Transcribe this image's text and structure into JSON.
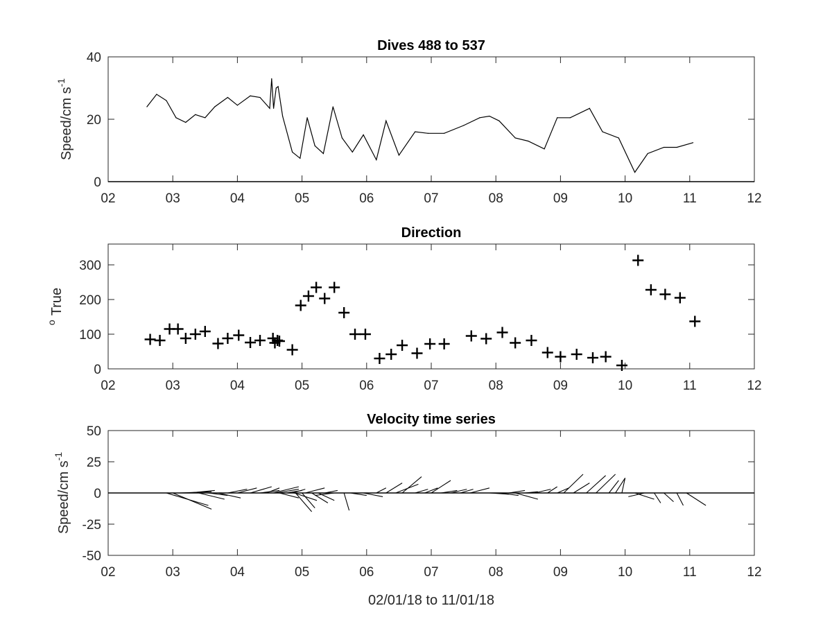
{
  "chart_data": [
    {
      "type": "line",
      "title": "Dives 488 to 537",
      "ylabel": "Speed/cm s",
      "ylabel_superscript": "-1",
      "xlabel": "",
      "xlim": [
        2,
        12
      ],
      "ylim": [
        0,
        40
      ],
      "x_ticks": [
        2,
        3,
        4,
        5,
        6,
        7,
        8,
        9,
        10,
        11,
        12
      ],
      "x_tick_labels": [
        "02",
        "03",
        "04",
        "05",
        "06",
        "07",
        "08",
        "09",
        "10",
        "11",
        "12"
      ],
      "y_ticks": [
        0,
        20,
        40
      ],
      "y_tick_labels": [
        "0",
        "20",
        "40"
      ],
      "grid": false,
      "series": [
        {
          "x": [
            2.6,
            2.75,
            2.9,
            3.05,
            3.2,
            3.35,
            3.5,
            3.65,
            3.85,
            4.0,
            4.2,
            4.35,
            4.5,
            4.53,
            4.56,
            4.6,
            4.63,
            4.7,
            4.85,
            4.97,
            5.08,
            5.2,
            5.33,
            5.48,
            5.62,
            5.78,
            5.95,
            6.15,
            6.3,
            6.5,
            6.75,
            6.95,
            7.2,
            7.5,
            7.75,
            7.9,
            8.05,
            8.3,
            8.5,
            8.75,
            8.95,
            9.15,
            9.45,
            9.65,
            9.9,
            10.15,
            10.35,
            10.6,
            10.8,
            11.05
          ],
          "y": [
            24,
            28,
            26,
            20.5,
            19,
            21.5,
            20.5,
            24,
            27,
            24.5,
            27.5,
            27,
            23.5,
            33,
            23.5,
            30,
            30.5,
            21,
            9.5,
            7.5,
            20.5,
            11.5,
            9,
            24,
            14,
            9.5,
            15,
            7,
            19.5,
            8.5,
            16,
            15.5,
            15.5,
            18,
            20.5,
            21,
            19.5,
            14,
            13,
            10.5,
            20.5,
            20.5,
            23.5,
            16,
            14,
            3,
            9,
            11,
            11,
            12.5
          ]
        }
      ]
    },
    {
      "type": "scatter",
      "title": "Direction",
      "ylabel": "True",
      "ylabel_prefix_superscript": "o",
      "xlabel": "",
      "xlim": [
        2,
        12
      ],
      "ylim": [
        0,
        360
      ],
      "x_ticks": [
        2,
        3,
        4,
        5,
        6,
        7,
        8,
        9,
        10,
        11,
        12
      ],
      "x_tick_labels": [
        "02",
        "03",
        "04",
        "05",
        "06",
        "07",
        "08",
        "09",
        "10",
        "11",
        "12"
      ],
      "y_ticks": [
        0,
        100,
        200,
        300
      ],
      "y_tick_labels": [
        "0",
        "100",
        "200",
        "300"
      ],
      "grid": false,
      "series": [
        {
          "x": [
            2.65,
            2.8,
            2.95,
            3.08,
            3.2,
            3.35,
            3.5,
            3.7,
            3.85,
            4.02,
            4.2,
            4.35,
            4.55,
            4.58,
            4.62,
            4.65,
            4.85,
            4.98,
            5.1,
            5.22,
            5.35,
            5.5,
            5.65,
            5.82,
            5.98,
            6.2,
            6.38,
            6.55,
            6.78,
            6.98,
            7.2,
            7.62,
            7.85,
            8.1,
            8.3,
            8.55,
            8.8,
            9.0,
            9.25,
            9.5,
            9.7,
            9.95,
            10.2,
            10.4,
            10.62,
            10.85,
            11.08
          ],
          "y": [
            85,
            82,
            115,
            115,
            88,
            100,
            108,
            73,
            88,
            97,
            76,
            82,
            88,
            75,
            82,
            80,
            55,
            183,
            210,
            235,
            203,
            235,
            162,
            100,
            100,
            30,
            42,
            68,
            45,
            72,
            72,
            95,
            87,
            105,
            75,
            82,
            47,
            35,
            42,
            32,
            35,
            10,
            313,
            228,
            215,
            205,
            137
          ]
        }
      ]
    },
    {
      "type": "stick",
      "title": "Velocity time series",
      "ylabel": "Speed/cm s",
      "ylabel_superscript": "-1",
      "xlabel": "02/01/18 to 11/01/18",
      "xlim": [
        2,
        12
      ],
      "ylim": [
        -50,
        50
      ],
      "x_ticks": [
        2,
        3,
        4,
        5,
        6,
        7,
        8,
        9,
        10,
        11,
        12
      ],
      "x_tick_labels": [
        "02",
        "03",
        "04",
        "05",
        "06",
        "07",
        "08",
        "09",
        "10",
        "11",
        "12"
      ],
      "y_ticks": [
        50,
        25,
        0,
        -25,
        -50
      ],
      "y_tick_labels": [
        "50",
        "25",
        "0",
        "-25",
        "-50"
      ],
      "grid": false,
      "sticks": [
        {
          "x": 2.9,
          "u": 0.65,
          "v": -10
        },
        {
          "x": 3.0,
          "u": 0.6,
          "v": -13
        },
        {
          "x": 3.1,
          "u": 0.5,
          "v": 1
        },
        {
          "x": 3.25,
          "u": 0.4,
          "v": 2
        },
        {
          "x": 3.4,
          "u": 0.4,
          "v": -5
        },
        {
          "x": 3.55,
          "u": 0.3,
          "v": -2
        },
        {
          "x": 3.7,
          "u": 0.35,
          "v": -4
        },
        {
          "x": 3.85,
          "u": 0.3,
          "v": 3
        },
        {
          "x": 4.0,
          "u": 0.3,
          "v": 4
        },
        {
          "x": 4.2,
          "u": 0.33,
          "v": 5
        },
        {
          "x": 4.35,
          "u": 0.3,
          "v": 2
        },
        {
          "x": 4.45,
          "u": 0.2,
          "v": 4
        },
        {
          "x": 4.55,
          "u": 0.4,
          "v": 5
        },
        {
          "x": 4.6,
          "u": 0.35,
          "v": 3
        },
        {
          "x": 4.65,
          "u": 0.3,
          "v": -4
        },
        {
          "x": 4.75,
          "u": 0.25,
          "v": 2
        },
        {
          "x": 4.85,
          "u": 0.2,
          "v": 3
        },
        {
          "x": 4.88,
          "u": 0.35,
          "v": -6
        },
        {
          "x": 4.9,
          "u": 0.25,
          "v": -15
        },
        {
          "x": 5.0,
          "u": 0.2,
          "v": -12
        },
        {
          "x": 5.05,
          "u": 0.3,
          "v": 4
        },
        {
          "x": 5.15,
          "u": 0.25,
          "v": -8
        },
        {
          "x": 5.25,
          "u": 0.25,
          "v": -6
        },
        {
          "x": 5.35,
          "u": 0.2,
          "v": 2
        },
        {
          "x": 5.5,
          "u": -0.3,
          "v": -2
        },
        {
          "x": 5.65,
          "u": 0.08,
          "v": -14
        },
        {
          "x": 5.75,
          "u": 0.25,
          "v": -2
        },
        {
          "x": 5.95,
          "u": 0.3,
          "v": -3
        },
        {
          "x": 6.15,
          "u": 0.15,
          "v": 4
        },
        {
          "x": 6.3,
          "u": 0.25,
          "v": 8
        },
        {
          "x": 6.45,
          "u": 0.35,
          "v": 7
        },
        {
          "x": 6.55,
          "u": 0.3,
          "v": 13
        },
        {
          "x": 6.75,
          "u": 0.2,
          "v": 3
        },
        {
          "x": 6.9,
          "u": 0.2,
          "v": 4
        },
        {
          "x": 7.0,
          "u": 0.3,
          "v": 10
        },
        {
          "x": 7.15,
          "u": 0.25,
          "v": 2
        },
        {
          "x": 7.3,
          "u": 0.25,
          "v": 3
        },
        {
          "x": 7.45,
          "u": 0.2,
          "v": 3
        },
        {
          "x": 7.6,
          "u": 0.3,
          "v": 4
        },
        {
          "x": 7.9,
          "u": 0.3,
          "v": -1
        },
        {
          "x": 8.05,
          "u": 0.3,
          "v": -2
        },
        {
          "x": 8.2,
          "u": 0.25,
          "v": 2
        },
        {
          "x": 8.3,
          "u": 0.35,
          "v": -5
        },
        {
          "x": 8.45,
          "u": 0.2,
          "v": 1
        },
        {
          "x": 8.6,
          "u": 0.25,
          "v": 3
        },
        {
          "x": 8.8,
          "u": 0.15,
          "v": 5
        },
        {
          "x": 8.95,
          "u": 0.18,
          "v": 4
        },
        {
          "x": 9.05,
          "u": 0.3,
          "v": 15
        },
        {
          "x": 9.2,
          "u": 0.25,
          "v": 8
        },
        {
          "x": 9.4,
          "u": 0.3,
          "v": 14
        },
        {
          "x": 9.55,
          "u": 0.3,
          "v": 15
        },
        {
          "x": 9.75,
          "u": 0.15,
          "v": 10
        },
        {
          "x": 9.85,
          "u": 0.15,
          "v": 12
        },
        {
          "x": 9.95,
          "u": 0.05,
          "v": 12
        },
        {
          "x": 10.15,
          "u": 0.3,
          "v": -5
        },
        {
          "x": 10.3,
          "u": -0.25,
          "v": -3
        },
        {
          "x": 10.45,
          "u": 0.1,
          "v": -8
        },
        {
          "x": 10.6,
          "u": 0.15,
          "v": -7
        },
        {
          "x": 10.8,
          "u": 0.1,
          "v": -10
        },
        {
          "x": 10.95,
          "u": 0.3,
          "v": -10
        }
      ]
    }
  ]
}
